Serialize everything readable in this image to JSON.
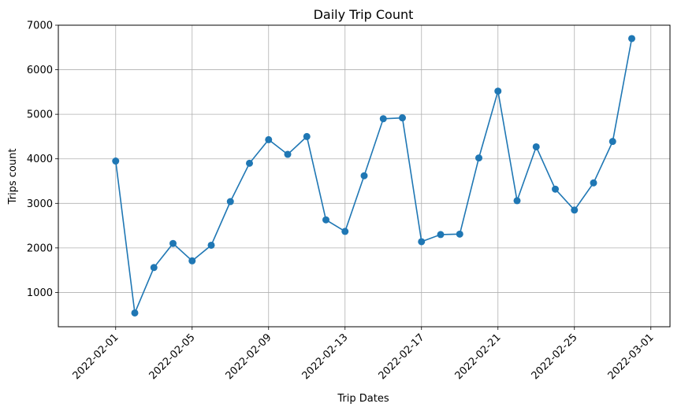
{
  "chart_data": {
    "type": "line",
    "title": "Daily Trip Count",
    "xlabel": "Trip Dates",
    "ylabel": "Trips count",
    "grid": true,
    "marker": "circle",
    "color": "#1f77b4",
    "xlim": [
      "2022-01-29",
      "2022-03-02"
    ],
    "ylim": [
      230,
      7000
    ],
    "x_ticks": [
      "2022-02-01",
      "2022-02-05",
      "2022-02-09",
      "2022-02-13",
      "2022-02-17",
      "2022-02-21",
      "2022-02-25",
      "2022-03-01"
    ],
    "y_ticks": [
      1000,
      2000,
      3000,
      4000,
      5000,
      6000,
      7000
    ],
    "series": [
      {
        "x": [
          "2022-02-01",
          "2022-02-02",
          "2022-02-03",
          "2022-02-04",
          "2022-02-05",
          "2022-02-06",
          "2022-02-07",
          "2022-02-08",
          "2022-02-09",
          "2022-02-10",
          "2022-02-11",
          "2022-02-12",
          "2022-02-13",
          "2022-02-14",
          "2022-02-15",
          "2022-02-16",
          "2022-02-17",
          "2022-02-18",
          "2022-02-19",
          "2022-02-20",
          "2022-02-21",
          "2022-02-22",
          "2022-02-23",
          "2022-02-24",
          "2022-02-25",
          "2022-02-26",
          "2022-02-27",
          "2022-02-28"
        ],
        "values": [
          3950,
          540,
          1560,
          2100,
          1710,
          2060,
          3040,
          3900,
          4430,
          4100,
          4500,
          2630,
          2370,
          3620,
          4900,
          4920,
          2140,
          2300,
          2310,
          4020,
          5520,
          3060,
          4270,
          3320,
          2850,
          3460,
          4390,
          6700
        ]
      }
    ]
  }
}
